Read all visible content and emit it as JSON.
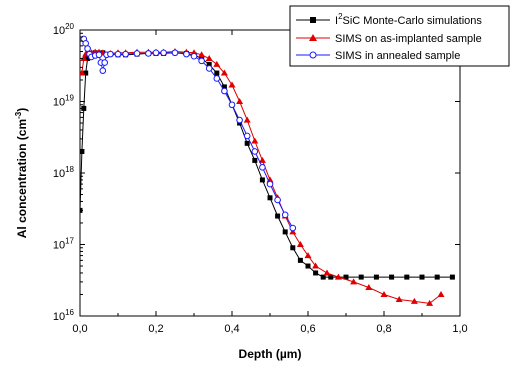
{
  "chart_data": {
    "type": "line",
    "xlabel": "Depth (µm)",
    "ylabel_base": "Al concentration (cm",
    "ylabel_exp": "-3",
    "ylabel_end": ")",
    "xlim": [
      0.0,
      1.0
    ],
    "ylim": [
      1e+16,
      1e+20
    ],
    "yscale": "log",
    "x_ticks": [
      {
        "value": 0.0,
        "label": "0,0"
      },
      {
        "value": 0.2,
        "label": "0,2"
      },
      {
        "value": 0.4,
        "label": "0,4"
      },
      {
        "value": 0.6,
        "label": "0,6"
      },
      {
        "value": 0.8,
        "label": "0,8"
      },
      {
        "value": 1.0,
        "label": "1,0"
      }
    ],
    "y_ticks": [
      {
        "value": 1e+16,
        "base": "10",
        "exp": "16"
      },
      {
        "value": 1e+17,
        "base": "10",
        "exp": "17"
      },
      {
        "value": 1e+18,
        "base": "10",
        "exp": "18"
      },
      {
        "value": 1e+19,
        "base": "10",
        "exp": "19"
      },
      {
        "value": 1e+20,
        "base": "10",
        "exp": "20"
      }
    ],
    "legend_position": "top-right",
    "series": [
      {
        "name_pre": "I",
        "name_sup": "2",
        "name_post": "SiC Monte-Carlo simulations",
        "color": "#000000",
        "marker": "square",
        "x": [
          0.0,
          0.005,
          0.01,
          0.015,
          0.02,
          0.03,
          0.04,
          0.05,
          0.06,
          0.08,
          0.1,
          0.12,
          0.15,
          0.18,
          0.2,
          0.22,
          0.25,
          0.28,
          0.3,
          0.32,
          0.34,
          0.36,
          0.38,
          0.4,
          0.42,
          0.44,
          0.46,
          0.48,
          0.5,
          0.52,
          0.54,
          0.56,
          0.58,
          0.6,
          0.62,
          0.64,
          0.66,
          0.7,
          0.74,
          0.78,
          0.82,
          0.86,
          0.9,
          0.94,
          0.98
        ],
        "y": [
          3e+17,
          2e+18,
          8e+18,
          2.5e+19,
          4e+19,
          4.6e+19,
          4.8e+19,
          4.7e+19,
          4.8e+19,
          4.6e+19,
          4.5e+19,
          4.5e+19,
          4.6e+19,
          4.7e+19,
          4.7e+19,
          4.7e+19,
          4.8e+19,
          4.7e+19,
          4.5e+19,
          4e+19,
          3.3e+19,
          2.5e+19,
          1.6e+19,
          9e+18,
          5e+18,
          2.6e+18,
          1.5e+18,
          8e+17,
          4.5e+17,
          2.5e+17,
          1.5e+17,
          9e+16,
          6e+16,
          5e+16,
          4e+16,
          3.5e+16,
          3.5e+16,
          3.5e+16,
          3.5e+16,
          3.5e+16,
          3.5e+16,
          3.5e+16,
          3.5e+16,
          3.5e+16,
          3.5e+16
        ]
      },
      {
        "name": "SIMS on as-implanted sample",
        "color": "#e00000",
        "marker": "triangle",
        "x": [
          0.005,
          0.01,
          0.015,
          0.02,
          0.03,
          0.04,
          0.05,
          0.06,
          0.08,
          0.1,
          0.12,
          0.15,
          0.18,
          0.2,
          0.22,
          0.25,
          0.28,
          0.3,
          0.32,
          0.34,
          0.36,
          0.38,
          0.4,
          0.42,
          0.44,
          0.46,
          0.48,
          0.5,
          0.52,
          0.54,
          0.56,
          0.58,
          0.6,
          0.62,
          0.65,
          0.68,
          0.72,
          0.76,
          0.8,
          0.84,
          0.88,
          0.92,
          0.95
        ],
        "y": [
          2.5e+19,
          4e+19,
          4.6e+19,
          4.7e+19,
          4.8e+19,
          4.9e+19,
          4.9e+19,
          4.8e+19,
          4.7e+19,
          4.8e+19,
          4.8e+19,
          4.9e+19,
          4.9e+19,
          4.9e+19,
          4.9e+19,
          5e+19,
          4.9e+19,
          4.8e+19,
          4.5e+19,
          4e+19,
          3.3e+19,
          2.5e+19,
          1.7e+19,
          1e+19,
          5.5e+18,
          2.8e+18,
          1.5e+18,
          8e+17,
          4.5e+17,
          2.5e+17,
          1.5e+17,
          1e+17,
          7e+16,
          5e+16,
          4e+16,
          3.5e+16,
          3e+16,
          2.5e+16,
          2e+16,
          1.7e+16,
          1.6e+16,
          1.5e+16,
          2e+16
        ]
      },
      {
        "name": "SIMS in annealed sample",
        "color": "#1a1aff",
        "marker": "circle",
        "x": [
          0.01,
          0.015,
          0.02,
          0.025,
          0.03,
          0.04,
          0.05,
          0.055,
          0.06,
          0.065,
          0.07,
          0.08,
          0.1,
          0.12,
          0.15,
          0.18,
          0.2,
          0.22,
          0.25,
          0.28,
          0.3,
          0.32,
          0.34,
          0.36,
          0.38,
          0.4,
          0.42,
          0.44,
          0.46,
          0.48,
          0.5,
          0.52,
          0.54,
          0.56
        ],
        "y": [
          7.5e+19,
          6.5e+19,
          5.5e+19,
          4.6e+19,
          4.2e+19,
          4.4e+19,
          4.5e+19,
          3.5e+19,
          2.7e+19,
          3.5e+19,
          4.5e+19,
          4.6e+19,
          4.6e+19,
          4.6e+19,
          4.7e+19,
          4.7e+19,
          4.8e+19,
          4.8e+19,
          4.8e+19,
          4.6e+19,
          4.3e+19,
          3.7e+19,
          2.9e+19,
          2.1e+19,
          1.4e+19,
          9e+18,
          5.5e+18,
          3.3e+18,
          2e+18,
          1.2e+18,
          7e+17,
          4.2e+17,
          2.6e+17,
          1.7e+17
        ]
      }
    ]
  }
}
